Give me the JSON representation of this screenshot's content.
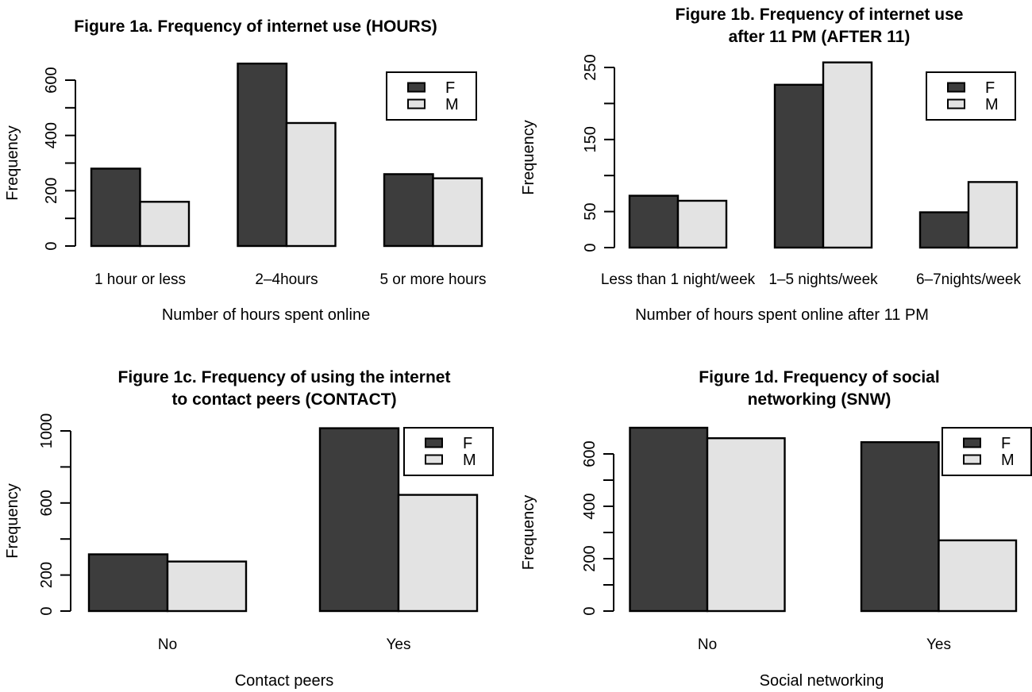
{
  "figure": {
    "background": "#ffffff",
    "text_color": "#000000",
    "axis_color": "#000000",
    "bar_border_color": "#000000",
    "series_colors": {
      "F": "#3d3d3d",
      "M": "#e3e3e3"
    },
    "legend_labels": [
      "F",
      "M"
    ]
  },
  "chart_data": [
    {
      "id": "fig1a",
      "type": "bar",
      "title_lines": [
        "Figure 1a. Frequency of internet use (HOURS)"
      ],
      "ylabel": "Frequency",
      "xlabel": "Number of hours spent online",
      "categories": [
        "1 hour or less",
        "2–4hours",
        "5 or more hours"
      ],
      "series": [
        {
          "name": "F",
          "values": [
            280,
            660,
            260
          ]
        },
        {
          "name": "M",
          "values": [
            160,
            445,
            245
          ]
        }
      ],
      "ylim": [
        0,
        600
      ],
      "ytick_step": 100,
      "ytick_labeled": [
        0,
        200,
        400,
        600
      ],
      "grid": false,
      "legend_position": "top-right"
    },
    {
      "id": "fig1b",
      "type": "bar",
      "title_lines": [
        "Figure 1b. Frequency of internet use",
        "after 11 PM (AFTER 11)"
      ],
      "ylabel": "Frequency",
      "xlabel": "Number of hours spent online after 11 PM",
      "categories": [
        "Less than 1 night/week",
        "1–5 nights/week",
        "6–7nights/week"
      ],
      "series": [
        {
          "name": "F",
          "values": [
            72,
            226,
            49
          ]
        },
        {
          "name": "M",
          "values": [
            65,
            257,
            91
          ]
        }
      ],
      "ylim": [
        0,
        250
      ],
      "ytick_step": 50,
      "ytick_labeled": [
        0,
        50,
        150,
        250
      ],
      "grid": false,
      "legend_position": "top-right"
    },
    {
      "id": "fig1c",
      "type": "bar",
      "title_lines": [
        "Figure 1c. Frequency of using the internet",
        "to contact peers (CONTACT)"
      ],
      "ylabel": "Frequency",
      "xlabel": "Contact peers",
      "categories": [
        "No",
        "Yes"
      ],
      "series": [
        {
          "name": "F",
          "values": [
            315,
            1015
          ]
        },
        {
          "name": "M",
          "values": [
            275,
            645
          ]
        }
      ],
      "ylim": [
        0,
        1000
      ],
      "ytick_step": 200,
      "ytick_labeled": [
        0,
        200,
        600,
        1000
      ],
      "grid": false,
      "legend_position": "top-right"
    },
    {
      "id": "fig1d",
      "type": "bar",
      "title_lines": [
        "Figure 1d. Frequency of social",
        "networking (SNW)"
      ],
      "ylabel": "Frequency",
      "xlabel": "Social networking",
      "categories": [
        "No",
        "Yes"
      ],
      "series": [
        {
          "name": "F",
          "values": [
            700,
            645
          ]
        },
        {
          "name": "M",
          "values": [
            660,
            270
          ]
        }
      ],
      "ylim": [
        0,
        600
      ],
      "ytick_step": 100,
      "ytick_labeled": [
        0,
        200,
        400,
        600
      ],
      "grid": false,
      "legend_position": "top-right"
    }
  ]
}
